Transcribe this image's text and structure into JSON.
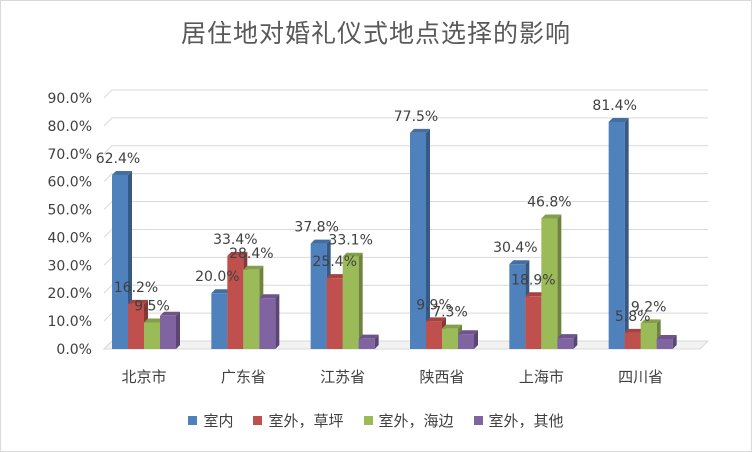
{
  "chart_data": {
    "type": "bar",
    "title": "居住地对婚礼仪式地点选择的影响",
    "categories": [
      "北京市",
      "广东省",
      "江苏省",
      "陕西省",
      "上海市",
      "四川省"
    ],
    "ylim": [
      0,
      90
    ],
    "yticks": [
      "0.0%",
      "10.0%",
      "20.0%",
      "30.0%",
      "40.0%",
      "50.0%",
      "60.0%",
      "70.0%",
      "80.0%",
      "90.0%"
    ],
    "grid": true,
    "legend_position": "bottom",
    "series": [
      {
        "name": "室内",
        "color": "#4f81bd",
        "values": [
          62.4,
          20.0,
          37.8,
          77.5,
          30.4,
          81.4
        ],
        "labels": [
          "62.4%",
          "20.0%",
          "37.8%",
          "77.5%",
          "30.4%",
          "81.4%"
        ]
      },
      {
        "name": "室外，草坪",
        "color": "#c0504d",
        "values": [
          16.2,
          33.4,
          25.4,
          9.9,
          18.9,
          5.8
        ],
        "labels": [
          "16.2%",
          "33.4%",
          "25.4%",
          "9.9%",
          "18.9%",
          "5.8%"
        ]
      },
      {
        "name": "室外，海边",
        "color": "#9bbb59",
        "values": [
          9.5,
          28.4,
          33.1,
          7.3,
          46.8,
          9.2
        ],
        "labels": [
          "9.5%",
          "28.4%",
          "33.1%",
          "7.3%",
          "46.8%",
          "9.2%"
        ]
      },
      {
        "name": "室外，其他",
        "color": "#8064a2",
        "values": [
          11.9,
          18.2,
          3.7,
          5.3,
          3.9,
          3.6
        ],
        "labels": []
      }
    ]
  }
}
